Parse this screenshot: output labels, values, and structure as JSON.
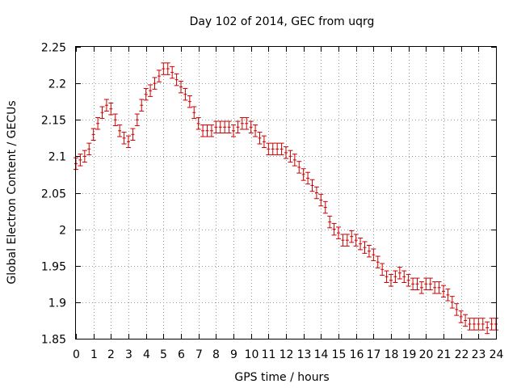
{
  "chart_data": {
    "type": "line",
    "title": "Day 102 of 2014, GEC from uqrg",
    "xlabel": "GPS time / hours",
    "ylabel": "Global Electron Content / GECUs",
    "xlim": [
      0,
      24
    ],
    "ylim": [
      1.85,
      2.25
    ],
    "grid": true,
    "error_bars": true,
    "x_ticks": [
      "0",
      "1",
      "2",
      "3",
      "4",
      "5",
      "6",
      "7",
      "8",
      "9",
      "10",
      "11",
      "12",
      "13",
      "14",
      "15",
      "16",
      "17",
      "18",
      "19",
      "20",
      "21",
      "22",
      "23",
      "24"
    ],
    "y_ticks": [
      "1.85",
      "1.9",
      "1.95",
      "2",
      "2.05",
      "2.1",
      "2.15",
      "2.2",
      "2.25"
    ],
    "colors": {
      "series": "#cc0000",
      "grid": "#9a9a9a"
    },
    "series": [
      {
        "error": 0.008,
        "x": [
          0,
          0.25,
          0.5,
          0.75,
          1,
          1.25,
          1.5,
          1.75,
          2,
          2.25,
          2.5,
          2.75,
          3,
          3.25,
          3.5,
          3.75,
          4,
          4.25,
          4.5,
          4.75,
          5,
          5.25,
          5.5,
          5.75,
          6,
          6.25,
          6.5,
          6.75,
          7,
          7.25,
          7.5,
          7.75,
          8,
          8.25,
          8.5,
          8.75,
          9,
          9.25,
          9.5,
          9.75,
          10,
          10.25,
          10.5,
          10.75,
          11,
          11.25,
          11.5,
          11.75,
          12,
          12.25,
          12.5,
          12.75,
          13,
          13.25,
          13.5,
          13.75,
          14,
          14.25,
          14.5,
          14.75,
          15,
          15.25,
          15.5,
          15.75,
          16,
          16.25,
          16.5,
          16.75,
          17,
          17.25,
          17.5,
          17.75,
          18,
          18.25,
          18.5,
          18.75,
          19,
          19.25,
          19.5,
          19.75,
          20,
          20.25,
          20.5,
          20.75,
          21,
          21.25,
          21.5,
          21.75,
          22,
          22.25,
          22.5,
          22.75,
          23,
          23.25,
          23.5,
          23.75,
          24
        ],
        "y": [
          2.09,
          2.095,
          2.1,
          2.11,
          2.13,
          2.145,
          2.16,
          2.17,
          2.165,
          2.15,
          2.135,
          2.125,
          2.12,
          2.13,
          2.15,
          2.17,
          2.185,
          2.19,
          2.2,
          2.21,
          2.22,
          2.22,
          2.215,
          2.205,
          2.195,
          2.185,
          2.175,
          2.16,
          2.145,
          2.135,
          2.135,
          2.135,
          2.14,
          2.14,
          2.14,
          2.14,
          2.135,
          2.14,
          2.145,
          2.145,
          2.14,
          2.135,
          2.125,
          2.12,
          2.11,
          2.11,
          2.11,
          2.11,
          2.105,
          2.1,
          2.095,
          2.085,
          2.075,
          2.07,
          2.06,
          2.05,
          2.04,
          2.03,
          2.01,
          2,
          1.995,
          1.985,
          1.985,
          1.99,
          1.985,
          1.98,
          1.975,
          1.97,
          1.965,
          1.955,
          1.945,
          1.935,
          1.93,
          1.935,
          1.94,
          1.935,
          1.93,
          1.925,
          1.925,
          1.92,
          1.925,
          1.925,
          1.92,
          1.92,
          1.915,
          1.91,
          1.9,
          1.89,
          1.88,
          1.875,
          1.87,
          1.87,
          1.87,
          1.87,
          1.865,
          1.87,
          1.87
        ]
      }
    ]
  }
}
